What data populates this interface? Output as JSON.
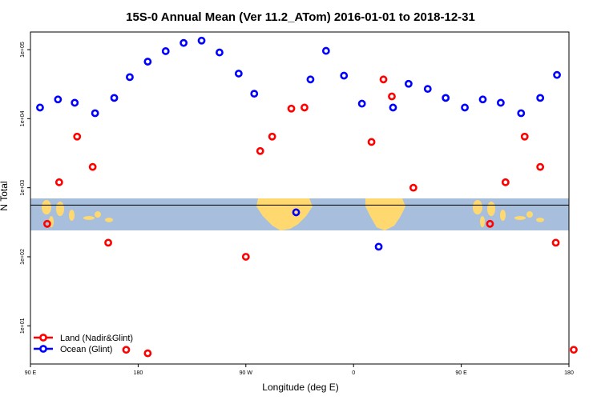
{
  "chart_data": {
    "type": "scatter",
    "title": "15S-0 Annual Mean (Ver 11.2_ATom)   2016-01-01 to 2018-12-31",
    "xlabel": "Longitude (deg E)",
    "ylabel": "N Total",
    "x_ticks": [
      {
        "value": 90,
        "label": "90 E"
      },
      {
        "value": 180,
        "label": "180"
      },
      {
        "value": 270,
        "label": "90 W"
      },
      {
        "value": 360,
        "label": "0"
      },
      {
        "value": 450,
        "label": "90 E"
      },
      {
        "value": 540,
        "label": "180"
      }
    ],
    "y_ticks": [
      {
        "value": 10,
        "label": "1e+01"
      },
      {
        "value": 100,
        "label": "1e+02"
      },
      {
        "value": 1000,
        "label": "1e+03"
      },
      {
        "value": 10000,
        "label": "1e+04"
      },
      {
        "value": 100000,
        "label": "1e+05"
      }
    ],
    "xlim": [
      90,
      540
    ],
    "ylim": [
      2.8,
      180000
    ],
    "y_scale": "log",
    "reference_line": 560,
    "map_band": {
      "low": 240,
      "high": 700
    },
    "legend_position": "bottom-left",
    "series": [
      {
        "name": "Land (Nadir&Glint)",
        "color": "#ff0000",
        "points": [
          [
            104,
            300
          ],
          [
            114,
            1200
          ],
          [
            129,
            5500
          ],
          [
            142,
            2000
          ],
          [
            155,
            160
          ],
          [
            170,
            4.5
          ],
          [
            188,
            4.0
          ],
          [
            270,
            100
          ],
          [
            282,
            3400
          ],
          [
            292,
            5500
          ],
          [
            308,
            14000
          ],
          [
            319,
            14500
          ],
          [
            375,
            4600
          ],
          [
            385,
            37000
          ],
          [
            392,
            21000
          ],
          [
            410,
            1000
          ],
          [
            474,
            300
          ],
          [
            487,
            1200
          ],
          [
            503,
            5500
          ],
          [
            516,
            2000
          ],
          [
            529,
            160
          ],
          [
            544,
            4.5
          ]
        ]
      },
      {
        "name": "Ocean (Glint)",
        "color": "#0000ff",
        "points": [
          [
            98,
            14500
          ],
          [
            113,
            19000
          ],
          [
            127,
            17000
          ],
          [
            144,
            12000
          ],
          [
            160,
            20000
          ],
          [
            173,
            40000
          ],
          [
            188,
            67000
          ],
          [
            203,
            95000
          ],
          [
            218,
            125000
          ],
          [
            233,
            135000
          ],
          [
            248,
            91000
          ],
          [
            264,
            45000
          ],
          [
            277,
            23000
          ],
          [
            312,
            440
          ],
          [
            324,
            37000
          ],
          [
            337,
            96000
          ],
          [
            352,
            42000
          ],
          [
            367,
            16500
          ],
          [
            381,
            140
          ],
          [
            393,
            14500
          ],
          [
            406,
            32000
          ],
          [
            422,
            27000
          ],
          [
            437,
            20000
          ],
          [
            453,
            14500
          ],
          [
            468,
            19000
          ],
          [
            483,
            17000
          ],
          [
            500,
            12000
          ],
          [
            516,
            20000
          ],
          [
            530,
            43000
          ]
        ]
      }
    ]
  }
}
